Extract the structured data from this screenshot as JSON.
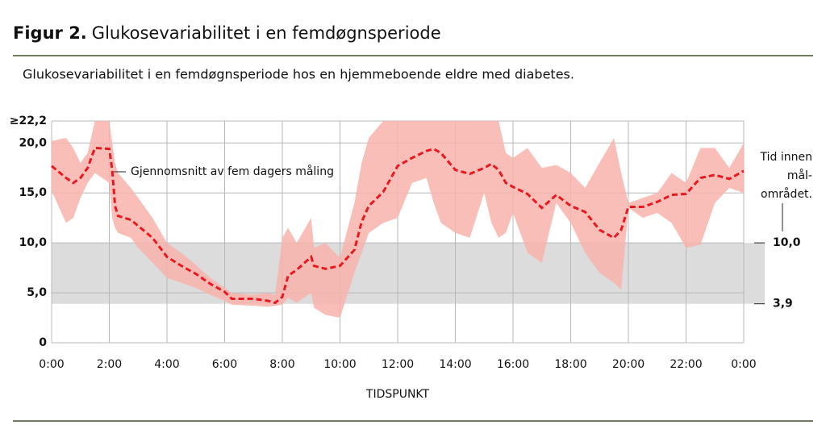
{
  "chart_data": {
    "type": "band_line",
    "title_label": "Figur 2.",
    "title": "Glukosevariabilitet i en femdøgnsperiode",
    "subtitle": "Glukosevariabilitet i en femdøgnsperiode hos en hjemmeboende eldre med diabetes.",
    "x_label": "TIDSPUNKT",
    "annotation": "Gjennomsnitt av fem dagers måling",
    "x": [
      0,
      0.5,
      0.75,
      1.0,
      1.25,
      1.5,
      2.0,
      2.1,
      2.2,
      2.3,
      2.75,
      3.0,
      3.5,
      4.0,
      4.5,
      5.0,
      5.5,
      6.0,
      6.25,
      7.0,
      7.5,
      7.75,
      8.0,
      8.2,
      8.5,
      9.0,
      9.1,
      9.5,
      10.0,
      10.5,
      10.75,
      11.0,
      11.5,
      12.0,
      12.5,
      13.0,
      13.25,
      13.5,
      14.0,
      14.5,
      15.0,
      15.25,
      15.5,
      15.75,
      16.0,
      16.5,
      17.0,
      17.5,
      18.0,
      18.5,
      19.0,
      19.5,
      19.75,
      20.0,
      20.5,
      21.0,
      21.5,
      22.0,
      22.5,
      23.0,
      23.5,
      24.0
    ],
    "series": [
      {
        "color": "#e8191e",
        "values": [
          17.7,
          16.5,
          16.0,
          16.5,
          17.5,
          19.5,
          19.4,
          17.3,
          13.7,
          12.7,
          12.3,
          11.7,
          10.5,
          8.6,
          7.7,
          6.9,
          5.9,
          5.1,
          4.4,
          4.4,
          4.2,
          4.0,
          4.6,
          6.7,
          7.3,
          8.6,
          7.7,
          7.4,
          7.7,
          9.3,
          12.1,
          13.7,
          15.1,
          17.7,
          18.5,
          19.2,
          19.4,
          19.0,
          17.3,
          16.9,
          17.5,
          17.9,
          17.3,
          16.0,
          15.6,
          14.9,
          13.5,
          14.8,
          13.7,
          13.1,
          11.3,
          10.5,
          11.3,
          13.6,
          13.6,
          14.1,
          14.8,
          14.9,
          16.5,
          16.8,
          16.4,
          17.2
        ]
      }
    ],
    "band": {
      "color": "#f9b3ad",
      "upper": [
        20.2,
        20.5,
        19.5,
        18.0,
        19.0,
        22.2,
        22.2,
        20.0,
        18.0,
        17.0,
        15.5,
        14.5,
        12.5,
        10.0,
        9.0,
        7.8,
        6.5,
        5.5,
        5.0,
        4.8,
        5.0,
        4.8,
        10.5,
        11.5,
        10.0,
        12.5,
        9.5,
        10.0,
        8.5,
        14.0,
        18.0,
        20.5,
        22.2,
        22.2,
        22.2,
        22.2,
        22.2,
        22.2,
        22.2,
        22.2,
        22.2,
        22.2,
        22.2,
        19.0,
        18.5,
        19.5,
        17.5,
        17.8,
        17.0,
        15.5,
        18.0,
        20.5,
        17.0,
        14.0,
        14.5,
        15.0,
        17.0,
        16.0,
        19.5,
        19.5,
        17.5,
        20.0
      ],
      "lower": [
        15.2,
        12.0,
        12.5,
        14.5,
        16.0,
        17.0,
        16.0,
        12.5,
        11.5,
        11.0,
        10.5,
        9.5,
        8.0,
        6.5,
        6.0,
        5.5,
        4.8,
        4.2,
        3.8,
        3.7,
        3.6,
        3.7,
        3.8,
        4.5,
        4.0,
        5.0,
        3.5,
        2.8,
        2.5,
        7.0,
        9.0,
        11.0,
        12.0,
        12.5,
        16.0,
        16.5,
        14.0,
        12.0,
        11.0,
        10.5,
        15.0,
        12.0,
        10.5,
        11.0,
        13.0,
        9.0,
        8.0,
        14.0,
        12.0,
        9.0,
        7.0,
        6.0,
        5.3,
        13.5,
        12.5,
        13.0,
        12.0,
        9.5,
        9.8,
        14.0,
        15.5,
        15.0
      ]
    },
    "target_range": {
      "values": [
        3.9,
        10.0
      ],
      "labels": [
        "3,9",
        "10,0"
      ],
      "color": "#dcdcdc",
      "label_lines": [
        "Tid innen",
        "mål-",
        "området."
      ]
    },
    "xlim": [
      0,
      24
    ],
    "xticks": [
      {
        "value": 0,
        "label": "0:00"
      },
      {
        "value": 2,
        "label": "2:00"
      },
      {
        "value": 4,
        "label": "4:00"
      },
      {
        "value": 6,
        "label": "6:00"
      },
      {
        "value": 8,
        "label": "8:00"
      },
      {
        "value": 10,
        "label": "10:00"
      },
      {
        "value": 12,
        "label": "12:00"
      },
      {
        "value": 14,
        "label": "14:00"
      },
      {
        "value": 16,
        "label": "16:00"
      },
      {
        "value": 18,
        "label": "18:00"
      },
      {
        "value": 20,
        "label": "20:00"
      },
      {
        "value": 22,
        "label": "22:00"
      },
      {
        "value": 24,
        "label": "0:00"
      }
    ],
    "ylim": [
      0,
      22.2
    ],
    "yticks": [
      0,
      {
        "value": 5,
        "label": "5,0"
      },
      {
        "value": 10,
        "label": "10,0"
      },
      {
        "value": 15,
        "label": "15,0"
      },
      {
        "value": 20,
        "label": "20,0"
      },
      {
        "value": 22.2,
        "label": "≥22,2"
      }
    ],
    "grid": true
  }
}
